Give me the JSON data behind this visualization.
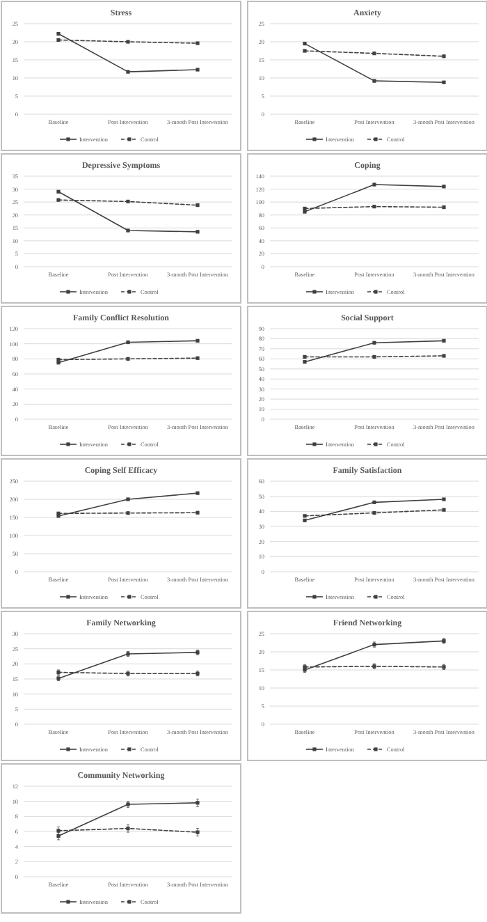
{
  "chart_data": [
    {
      "type": "line",
      "title": "Stress",
      "categories": [
        "Baseline",
        "Post Intervention",
        "3-month Post Intervention"
      ],
      "ylim": [
        0,
        25
      ],
      "yticks": [
        0,
        5,
        10,
        15,
        20,
        25
      ],
      "grid": "y",
      "legend": "bottom",
      "marker": "square",
      "series": [
        {
          "name": "Intervention",
          "color": "#404040",
          "line_style": "solid",
          "values": [
            22.2,
            11.7,
            12.3
          ]
        },
        {
          "name": "Control",
          "color": "#404040",
          "line_style": "dashed",
          "values": [
            20.5,
            20.0,
            19.6
          ]
        }
      ]
    },
    {
      "type": "line",
      "title": "Anxiety",
      "categories": [
        "Baseline",
        "Post Intervention",
        "3-month Post Intervention"
      ],
      "ylim": [
        0,
        25
      ],
      "yticks": [
        0,
        5,
        10,
        15,
        20,
        25
      ],
      "grid": "y",
      "legend": "bottom",
      "marker": "square",
      "series": [
        {
          "name": "Intervention",
          "color": "#404040",
          "line_style": "solid",
          "values": [
            19.5,
            9.2,
            8.8
          ]
        },
        {
          "name": "Control",
          "color": "#404040",
          "line_style": "dashed",
          "values": [
            17.5,
            16.8,
            16.0
          ]
        }
      ]
    },
    {
      "type": "line",
      "title": "Depressive Symptoms",
      "categories": [
        "Baseline",
        "Post Intervention",
        "3-month Post Intervention"
      ],
      "ylim": [
        0,
        35
      ],
      "yticks": [
        0,
        5,
        10,
        15,
        20,
        25,
        30,
        35
      ],
      "grid": "y",
      "legend": "bottom",
      "marker": "square",
      "series": [
        {
          "name": "Intervention",
          "color": "#404040",
          "line_style": "solid",
          "values": [
            29,
            14,
            13.5
          ]
        },
        {
          "name": "Control",
          "color": "#404040",
          "line_style": "dashed",
          "values": [
            25.8,
            25.2,
            23.8
          ]
        }
      ]
    },
    {
      "type": "line",
      "title": "Coping",
      "categories": [
        "Baseline",
        "Post Intervention",
        "3-month Post Intervention"
      ],
      "ylim": [
        0,
        140
      ],
      "yticks": [
        0,
        20,
        40,
        60,
        80,
        100,
        120,
        140
      ],
      "grid": "y",
      "legend": "bottom",
      "marker": "square",
      "series": [
        {
          "name": "Intervention",
          "color": "#404040",
          "line_style": "solid",
          "values": [
            85,
            127,
            124
          ]
        },
        {
          "name": "Control",
          "color": "#404040",
          "line_style": "dashed",
          "values": [
            90,
            93,
            92
          ]
        }
      ]
    },
    {
      "type": "line",
      "title": "Family Conflict Resolution",
      "categories": [
        "Baseline",
        "Post Intervention",
        "3-month Post Intervention"
      ],
      "ylim": [
        0,
        120
      ],
      "yticks": [
        0,
        20,
        40,
        60,
        80,
        100,
        120
      ],
      "grid": "y",
      "legend": "bottom",
      "marker": "square",
      "series": [
        {
          "name": "Intervention",
          "color": "#404040",
          "line_style": "solid",
          "values": [
            75,
            102,
            104
          ]
        },
        {
          "name": "Control",
          "color": "#404040",
          "line_style": "dashed",
          "values": [
            79,
            80,
            81
          ]
        }
      ]
    },
    {
      "type": "line",
      "title": "Social Support",
      "categories": [
        "Baseline",
        "Post Intervention",
        "3-month Post Intervention"
      ],
      "ylim": [
        0,
        90
      ],
      "yticks": [
        0,
        10,
        20,
        30,
        40,
        50,
        60,
        70,
        80,
        90
      ],
      "grid": "y",
      "legend": "bottom",
      "marker": "square",
      "series": [
        {
          "name": "Intervention",
          "color": "#404040",
          "line_style": "solid",
          "values": [
            57,
            76,
            78
          ]
        },
        {
          "name": "Control",
          "color": "#404040",
          "line_style": "dashed",
          "values": [
            62,
            62,
            63
          ]
        }
      ]
    },
    {
      "type": "line",
      "title": "Coping Self Efficacy",
      "categories": [
        "Baseline",
        "Post Intervention",
        "3-month Post Intervention"
      ],
      "ylim": [
        0,
        250
      ],
      "yticks": [
        0,
        50,
        100,
        150,
        200,
        250
      ],
      "grid": "y",
      "legend": "bottom",
      "marker": "square",
      "series": [
        {
          "name": "Intervention",
          "color": "#404040",
          "line_style": "solid",
          "values": [
            154,
            200,
            217
          ]
        },
        {
          "name": "Control",
          "color": "#404040",
          "line_style": "dashed",
          "values": [
            161,
            162,
            163
          ]
        }
      ]
    },
    {
      "type": "line",
      "title": "Family Satisfaction",
      "categories": [
        "Baseline",
        "Post Intervention",
        "3-month Post Intervention"
      ],
      "ylim": [
        0,
        60
      ],
      "yticks": [
        0,
        10,
        20,
        30,
        40,
        50,
        60
      ],
      "grid": "y",
      "legend": "bottom",
      "marker": "square",
      "series": [
        {
          "name": "Intervention",
          "color": "#404040",
          "line_style": "solid",
          "values": [
            34,
            46,
            48
          ]
        },
        {
          "name": "Control",
          "color": "#404040",
          "line_style": "dashed",
          "values": [
            37,
            39,
            41
          ]
        }
      ]
    },
    {
      "type": "line",
      "title": "Family Networking",
      "categories": [
        "Baseline",
        "Post Intervention",
        "3-month Post Intervention"
      ],
      "ylim": [
        0,
        30
      ],
      "yticks": [
        0,
        5,
        10,
        15,
        20,
        25,
        30
      ],
      "grid": "y",
      "legend": "bottom",
      "marker": "square",
      "series": [
        {
          "name": "Intervention",
          "color": "#404040",
          "line_style": "solid",
          "values": [
            15.2,
            23.3,
            23.8
          ],
          "errors": [
            0.8,
            0.8,
            0.8
          ]
        },
        {
          "name": "Control",
          "color": "#404040",
          "line_style": "dashed",
          "values": [
            17.2,
            16.8,
            16.8
          ],
          "errors": [
            0.8,
            0.8,
            0.8
          ]
        }
      ]
    },
    {
      "type": "line",
      "title": "Friend Networking",
      "categories": [
        "Baseline",
        "Post Intervention",
        "3-month Post Intervention"
      ],
      "ylim": [
        0,
        25
      ],
      "yticks": [
        0,
        5,
        10,
        15,
        20,
        25
      ],
      "grid": "y",
      "legend": "bottom",
      "marker": "square",
      "series": [
        {
          "name": "Intervention",
          "color": "#404040",
          "line_style": "solid",
          "values": [
            15,
            22,
            23
          ],
          "errors": [
            0.7,
            0.7,
            0.7
          ]
        },
        {
          "name": "Control",
          "color": "#404040",
          "line_style": "dashed",
          "values": [
            15.8,
            16,
            15.8
          ],
          "errors": [
            0.7,
            0.7,
            0.7
          ]
        }
      ]
    },
    {
      "type": "line",
      "title": "Community Networking",
      "categories": [
        "Baseline",
        "Post Intervention",
        "3-month Post Intervention"
      ],
      "ylim": [
        0,
        12
      ],
      "yticks": [
        0,
        2,
        4,
        6,
        8,
        10,
        12
      ],
      "grid": "y",
      "legend": "bottom",
      "marker": "square",
      "series": [
        {
          "name": "Intervention",
          "color": "#404040",
          "line_style": "solid",
          "values": [
            5.4,
            9.6,
            9.8
          ],
          "errors": [
            0.5,
            0.4,
            0.5
          ]
        },
        {
          "name": "Control",
          "color": "#404040",
          "line_style": "dashed",
          "values": [
            6.1,
            6.4,
            5.9
          ],
          "errors": [
            0.5,
            0.5,
            0.5
          ]
        }
      ]
    }
  ]
}
